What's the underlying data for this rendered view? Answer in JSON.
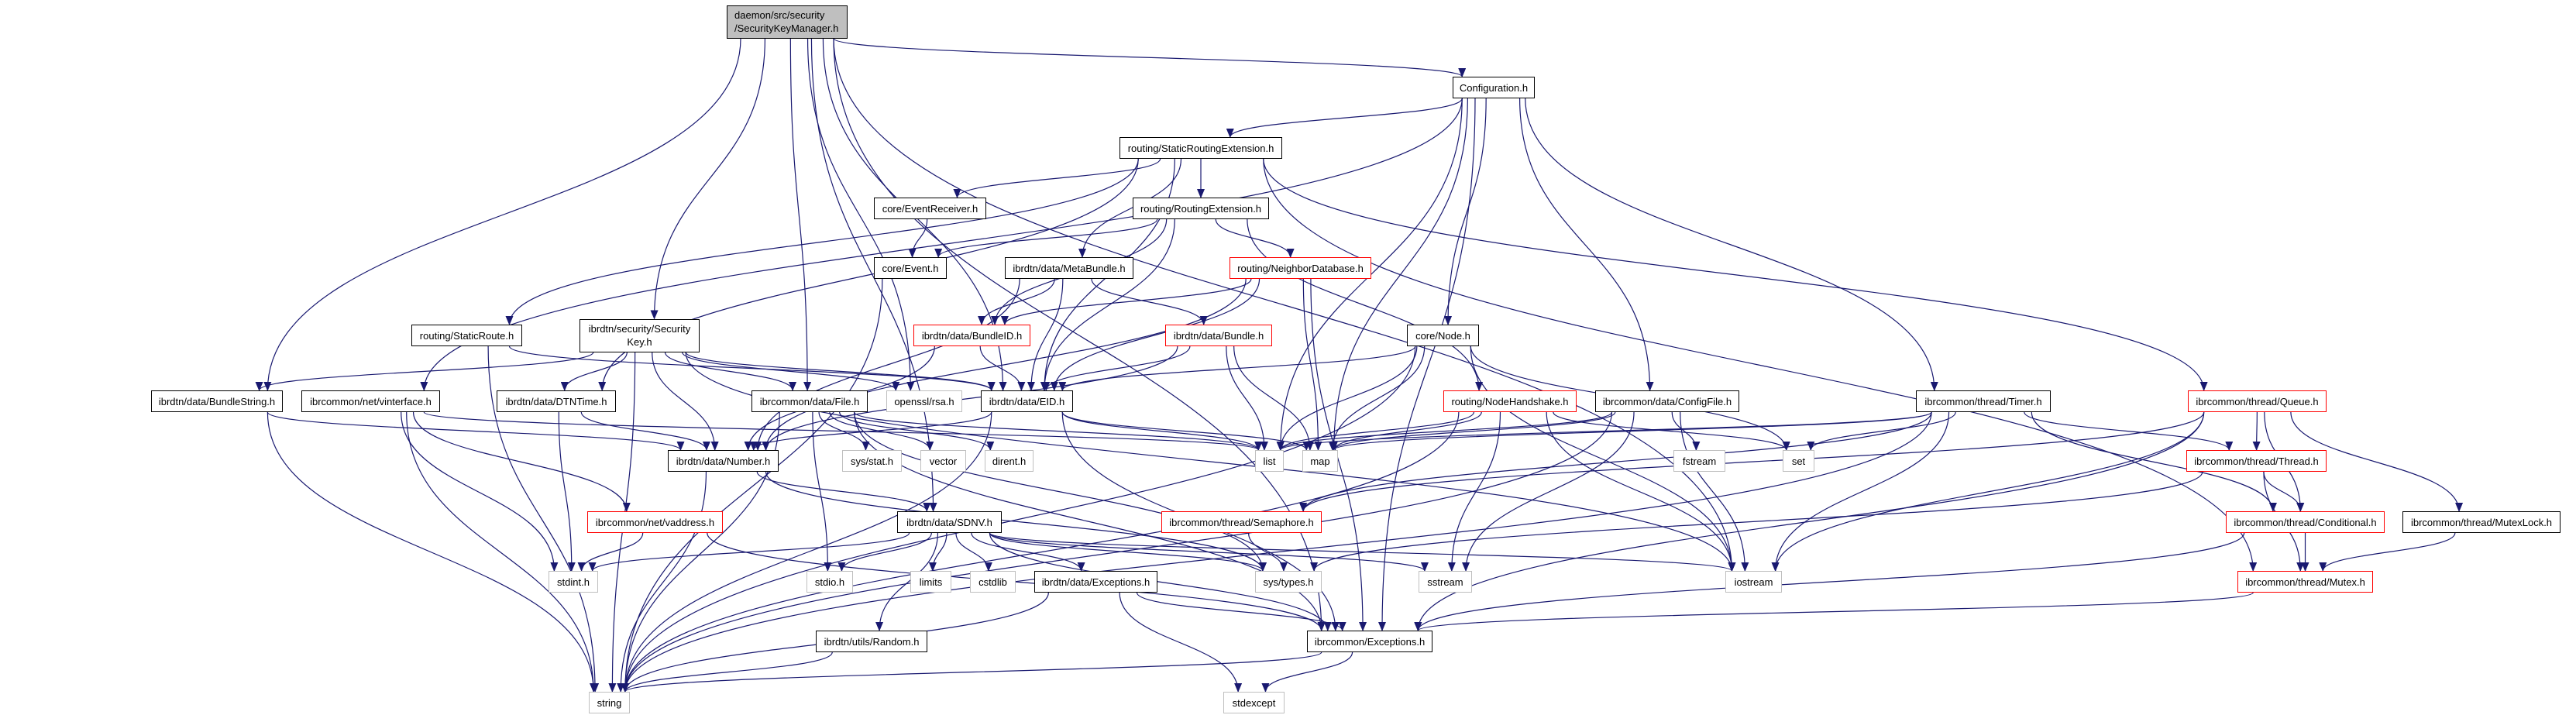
{
  "graph": {
    "edge_color": "#191970",
    "nodes": [
      {
        "id": "skm",
        "label": "daemon/src/security\n/SecurityKeyManager.h",
        "kind": "current"
      },
      {
        "id": "config",
        "label": "Configuration.h",
        "kind": "normal"
      },
      {
        "id": "sre",
        "label": "routing/StaticRoutingExtension.h",
        "kind": "normal"
      },
      {
        "id": "evrecv",
        "label": "core/EventReceiver.h",
        "kind": "normal"
      },
      {
        "id": "routext",
        "label": "routing/RoutingExtension.h",
        "kind": "normal"
      },
      {
        "id": "event",
        "label": "core/Event.h",
        "kind": "normal"
      },
      {
        "id": "metabundle",
        "label": "ibrdtn/data/MetaBundle.h",
        "kind": "normal"
      },
      {
        "id": "neighbordb",
        "label": "routing/NeighborDatabase.h",
        "kind": "truncated"
      },
      {
        "id": "staticroute",
        "label": "routing/StaticRoute.h",
        "kind": "normal"
      },
      {
        "id": "seckey",
        "label": "ibrdtn/security/Security\nKey.h",
        "kind": "normal"
      },
      {
        "id": "bundleid",
        "label": "ibrdtn/data/BundleID.h",
        "kind": "truncated"
      },
      {
        "id": "bundle",
        "label": "ibrdtn/data/Bundle.h",
        "kind": "truncated"
      },
      {
        "id": "node",
        "label": "core/Node.h",
        "kind": "normal"
      },
      {
        "id": "bundlestring",
        "label": "ibrdtn/data/BundleString.h",
        "kind": "normal"
      },
      {
        "id": "vinterface",
        "label": "ibrcommon/net/vinterface.h",
        "kind": "normal"
      },
      {
        "id": "dtntime",
        "label": "ibrdtn/data/DTNTime.h",
        "kind": "normal"
      },
      {
        "id": "file",
        "label": "ibrcommon/data/File.h",
        "kind": "normal"
      },
      {
        "id": "openssl",
        "label": "openssl/rsa.h",
        "kind": "external"
      },
      {
        "id": "eid",
        "label": "ibrdtn/data/EID.h",
        "kind": "normal"
      },
      {
        "id": "nodehandshake",
        "label": "routing/NodeHandshake.h",
        "kind": "truncated"
      },
      {
        "id": "configfile",
        "label": "ibrcommon/data/ConfigFile.h",
        "kind": "normal"
      },
      {
        "id": "timer",
        "label": "ibrcommon/thread/Timer.h",
        "kind": "normal"
      },
      {
        "id": "queue",
        "label": "ibrcommon/thread/Queue.h",
        "kind": "truncated"
      },
      {
        "id": "systat",
        "label": "sys/stat.h",
        "kind": "external"
      },
      {
        "id": "vector",
        "label": "vector",
        "kind": "external"
      },
      {
        "id": "dirent",
        "label": "dirent.h",
        "kind": "external"
      },
      {
        "id": "list",
        "label": "list",
        "kind": "external"
      },
      {
        "id": "map",
        "label": "map",
        "kind": "external"
      },
      {
        "id": "fstream",
        "label": "fstream",
        "kind": "external"
      },
      {
        "id": "set",
        "label": "set",
        "kind": "external"
      },
      {
        "id": "number",
        "label": "ibrdtn/data/Number.h",
        "kind": "normal"
      },
      {
        "id": "thread",
        "label": "ibrcommon/thread/Thread.h",
        "kind": "truncated"
      },
      {
        "id": "sdnv",
        "label": "ibrdtn/data/SDNV.h",
        "kind": "normal"
      },
      {
        "id": "vaddress",
        "label": "ibrcommon/net/vaddress.h",
        "kind": "truncated"
      },
      {
        "id": "semaphore",
        "label": "ibrcommon/thread/Semaphore.h",
        "kind": "truncated"
      },
      {
        "id": "conditional",
        "label": "ibrcommon/thread/Conditional.h",
        "kind": "truncated"
      },
      {
        "id": "mutexlock",
        "label": "ibrcommon/thread/MutexLock.h",
        "kind": "normal"
      },
      {
        "id": "stdint",
        "label": "stdint.h",
        "kind": "external"
      },
      {
        "id": "stdio",
        "label": "stdio.h",
        "kind": "external"
      },
      {
        "id": "limits",
        "label": "limits",
        "kind": "external"
      },
      {
        "id": "cstdlib",
        "label": "cstdlib",
        "kind": "external"
      },
      {
        "id": "dataexc",
        "label": "ibrdtn/data/Exceptions.h",
        "kind": "normal"
      },
      {
        "id": "systypes",
        "label": "sys/types.h",
        "kind": "external"
      },
      {
        "id": "sstream",
        "label": "sstream",
        "kind": "external"
      },
      {
        "id": "iostream",
        "label": "iostream",
        "kind": "external"
      },
      {
        "id": "mutex",
        "label": "ibrcommon/thread/Mutex.h",
        "kind": "truncated"
      },
      {
        "id": "random",
        "label": "ibrdtn/utils/Random.h",
        "kind": "normal"
      },
      {
        "id": "commonexc",
        "label": "ibrcommon/Exceptions.h",
        "kind": "normal"
      },
      {
        "id": "string",
        "label": "string",
        "kind": "external"
      },
      {
        "id": "stdexcept",
        "label": "stdexcept",
        "kind": "external"
      }
    ],
    "edges": [
      [
        "skm",
        "bundlestring"
      ],
      [
        "skm",
        "sdnv"
      ],
      [
        "skm",
        "seckey"
      ],
      [
        "skm",
        "file"
      ],
      [
        "skm",
        "openssl"
      ],
      [
        "skm",
        "eid"
      ],
      [
        "skm",
        "config"
      ],
      [
        "skm",
        "iostream"
      ],
      [
        "skm",
        "commonexc"
      ],
      [
        "config",
        "vinterface"
      ],
      [
        "config",
        "sre"
      ],
      [
        "config",
        "list"
      ],
      [
        "config",
        "map"
      ],
      [
        "config",
        "node"
      ],
      [
        "config",
        "configfile"
      ],
      [
        "config",
        "timer"
      ],
      [
        "config",
        "commonexc"
      ],
      [
        "sre",
        "evrecv"
      ],
      [
        "sre",
        "routext"
      ],
      [
        "sre",
        "metabundle"
      ],
      [
        "sre",
        "staticroute"
      ],
      [
        "sre",
        "dtntime"
      ],
      [
        "sre",
        "eid"
      ],
      [
        "sre",
        "mutex"
      ],
      [
        "sre",
        "queue"
      ],
      [
        "routext",
        "event"
      ],
      [
        "routext",
        "bundleid"
      ],
      [
        "routext",
        "eid"
      ],
      [
        "routext",
        "neighbordb"
      ],
      [
        "routext",
        "nodehandshake"
      ],
      [
        "evrecv",
        "event"
      ],
      [
        "event",
        "string"
      ],
      [
        "metabundle",
        "bundleid"
      ],
      [
        "metabundle",
        "bundle"
      ],
      [
        "metabundle",
        "eid"
      ],
      [
        "metabundle",
        "number"
      ],
      [
        "neighbordb",
        "bundleid"
      ],
      [
        "neighbordb",
        "eid"
      ],
      [
        "neighbordb",
        "map"
      ],
      [
        "neighbordb",
        "number"
      ],
      [
        "neighbordb",
        "commonexc"
      ],
      [
        "bundleid",
        "eid"
      ],
      [
        "bundleid",
        "number"
      ],
      [
        "bundle",
        "eid"
      ],
      [
        "bundle",
        "list"
      ],
      [
        "bundle",
        "map"
      ],
      [
        "bundle",
        "number"
      ],
      [
        "node",
        "eid"
      ],
      [
        "node",
        "list"
      ],
      [
        "node",
        "map"
      ],
      [
        "node",
        "set"
      ],
      [
        "node",
        "iostream"
      ],
      [
        "node",
        "string"
      ],
      [
        "staticroute",
        "string"
      ],
      [
        "staticroute",
        "eid"
      ],
      [
        "seckey",
        "bundlestring"
      ],
      [
        "seckey",
        "dtntime"
      ],
      [
        "seckey",
        "number"
      ],
      [
        "seckey",
        "file"
      ],
      [
        "seckey",
        "openssl"
      ],
      [
        "seckey",
        "eid"
      ],
      [
        "seckey",
        "iostream"
      ],
      [
        "seckey",
        "string"
      ],
      [
        "bundlestring",
        "number"
      ],
      [
        "bundlestring",
        "string"
      ],
      [
        "vinterface",
        "list"
      ],
      [
        "vinterface",
        "stdint"
      ],
      [
        "vinterface",
        "vaddress"
      ],
      [
        "vinterface",
        "string"
      ],
      [
        "dtntime",
        "number"
      ],
      [
        "dtntime",
        "stdint"
      ],
      [
        "file",
        "systat"
      ],
      [
        "file",
        "vector"
      ],
      [
        "file",
        "dirent"
      ],
      [
        "file",
        "list"
      ],
      [
        "file",
        "stdio"
      ],
      [
        "file",
        "systypes"
      ],
      [
        "file",
        "commonexc"
      ],
      [
        "file",
        "string"
      ],
      [
        "eid",
        "number"
      ],
      [
        "eid",
        "list"
      ],
      [
        "eid",
        "map"
      ],
      [
        "eid",
        "string"
      ],
      [
        "eid",
        "commonexc"
      ],
      [
        "nodehandshake",
        "list"
      ],
      [
        "nodehandshake",
        "map"
      ],
      [
        "nodehandshake",
        "sstream"
      ],
      [
        "nodehandshake",
        "iostream"
      ],
      [
        "nodehandshake",
        "set"
      ],
      [
        "nodehandshake",
        "string"
      ],
      [
        "configfile",
        "map"
      ],
      [
        "configfile",
        "list"
      ],
      [
        "configfile",
        "fstream"
      ],
      [
        "configfile",
        "sstream"
      ],
      [
        "configfile",
        "iostream"
      ],
      [
        "configfile",
        "string"
      ],
      [
        "number",
        "sdnv"
      ],
      [
        "number",
        "string"
      ],
      [
        "number",
        "systypes"
      ],
      [
        "vaddress",
        "stdint"
      ],
      [
        "vaddress",
        "commonexc"
      ],
      [
        "sdnv",
        "stdint"
      ],
      [
        "sdnv",
        "stdio"
      ],
      [
        "sdnv",
        "limits"
      ],
      [
        "sdnv",
        "cstdlib"
      ],
      [
        "sdnv",
        "random"
      ],
      [
        "sdnv",
        "dataexc"
      ],
      [
        "sdnv",
        "systypes"
      ],
      [
        "sdnv",
        "sstream"
      ],
      [
        "sdnv",
        "iostream"
      ],
      [
        "sdnv",
        "commonexc"
      ],
      [
        "semaphore",
        "systypes"
      ],
      [
        "timer",
        "map"
      ],
      [
        "timer",
        "set"
      ],
      [
        "timer",
        "iostream"
      ],
      [
        "timer",
        "thread"
      ],
      [
        "timer",
        "conditional"
      ],
      [
        "timer",
        "semaphore"
      ],
      [
        "timer",
        "string"
      ],
      [
        "timer",
        "list"
      ],
      [
        "queue",
        "thread"
      ],
      [
        "queue",
        "conditional"
      ],
      [
        "queue",
        "mutexlock"
      ],
      [
        "queue",
        "iostream"
      ],
      [
        "queue",
        "commonexc"
      ],
      [
        "queue",
        "semaphore"
      ],
      [
        "thread",
        "conditional"
      ],
      [
        "thread",
        "mutex"
      ],
      [
        "thread",
        "systypes"
      ],
      [
        "conditional",
        "mutex"
      ],
      [
        "conditional",
        "commonexc"
      ],
      [
        "mutexlock",
        "mutex"
      ],
      [
        "mutex",
        "commonexc"
      ],
      [
        "dataexc",
        "commonexc"
      ],
      [
        "dataexc",
        "stdexcept"
      ],
      [
        "dataexc",
        "string"
      ],
      [
        "commonexc",
        "stdexcept"
      ],
      [
        "commonexc",
        "string"
      ],
      [
        "random",
        "string"
      ]
    ]
  }
}
